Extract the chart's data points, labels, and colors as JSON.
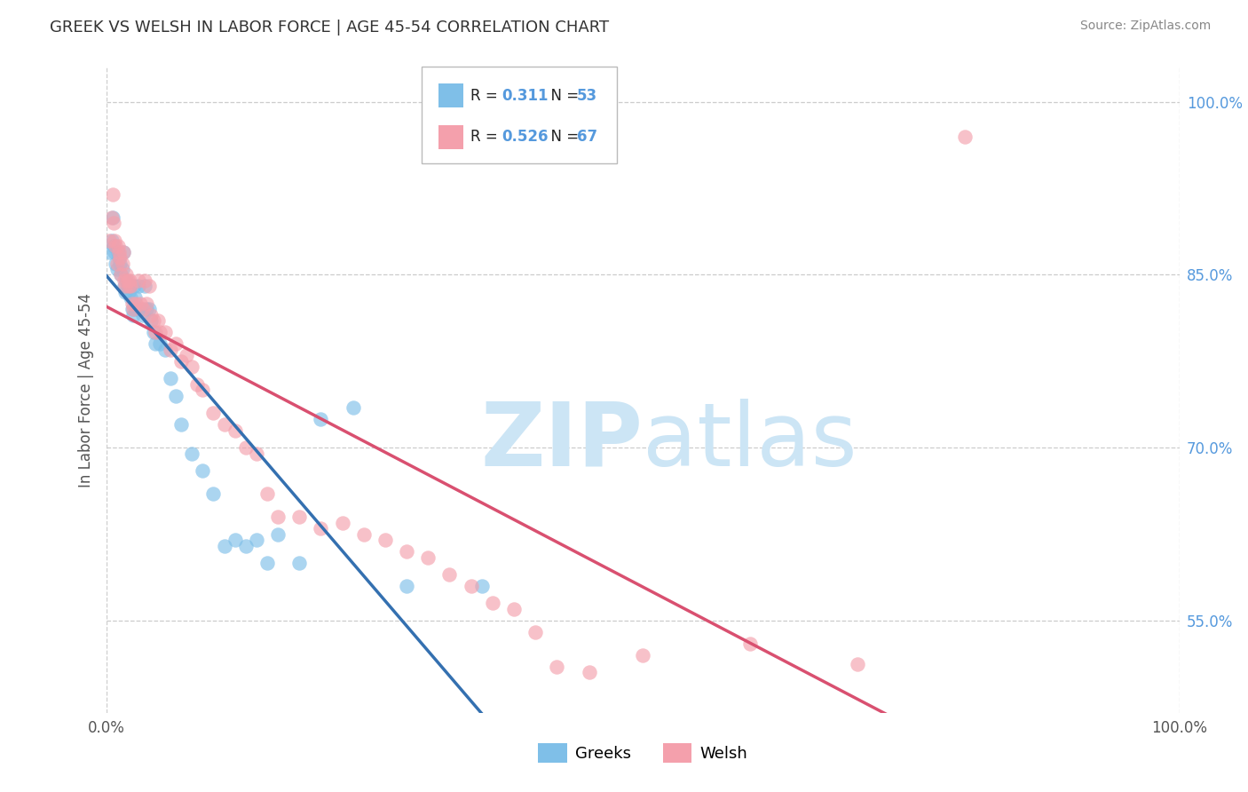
{
  "title": "GREEK VS WELSH IN LABOR FORCE | AGE 45-54 CORRELATION CHART",
  "source": "Source: ZipAtlas.com",
  "ylabel": "In Labor Force | Age 45-54",
  "xlim": [
    0.0,
    1.0
  ],
  "ylim": [
    0.47,
    1.03
  ],
  "yticks": [
    0.55,
    0.7,
    0.85,
    1.0
  ],
  "yticklabels": [
    "55.0%",
    "70.0%",
    "85.0%",
    "100.0%"
  ],
  "xticklabels": [
    "0.0%",
    "100.0%"
  ],
  "greek_R": 0.311,
  "greek_N": 53,
  "welsh_R": 0.526,
  "welsh_N": 67,
  "greek_color": "#7fbfe8",
  "welsh_color": "#f4a0ac",
  "greek_line_color": "#3470b0",
  "welsh_line_color": "#d95070",
  "tick_color": "#5599dd",
  "grid_color": "#cccccc",
  "watermark_color": "#cce5f5",
  "greek_x": [
    0.003,
    0.005,
    0.006,
    0.007,
    0.008,
    0.009,
    0.01,
    0.011,
    0.012,
    0.013,
    0.014,
    0.015,
    0.016,
    0.017,
    0.018,
    0.019,
    0.02,
    0.021,
    0.022,
    0.023,
    0.024,
    0.025,
    0.026,
    0.027,
    0.028,
    0.03,
    0.032,
    0.034,
    0.036,
    0.038,
    0.04,
    0.042,
    0.044,
    0.046,
    0.05,
    0.055,
    0.06,
    0.065,
    0.07,
    0.08,
    0.09,
    0.1,
    0.11,
    0.12,
    0.13,
    0.14,
    0.15,
    0.16,
    0.18,
    0.2,
    0.23,
    0.28,
    0.35
  ],
  "greek_y": [
    0.87,
    0.88,
    0.9,
    0.875,
    0.87,
    0.86,
    0.855,
    0.87,
    0.865,
    0.86,
    0.85,
    0.855,
    0.87,
    0.84,
    0.835,
    0.845,
    0.84,
    0.835,
    0.84,
    0.83,
    0.82,
    0.815,
    0.84,
    0.83,
    0.82,
    0.84,
    0.82,
    0.815,
    0.84,
    0.82,
    0.82,
    0.81,
    0.8,
    0.79,
    0.79,
    0.785,
    0.76,
    0.745,
    0.72,
    0.695,
    0.68,
    0.66,
    0.615,
    0.62,
    0.615,
    0.62,
    0.6,
    0.625,
    0.6,
    0.725,
    0.735,
    0.58,
    0.58
  ],
  "welsh_x": [
    0.003,
    0.005,
    0.006,
    0.007,
    0.008,
    0.009,
    0.01,
    0.011,
    0.012,
    0.013,
    0.014,
    0.015,
    0.016,
    0.017,
    0.018,
    0.019,
    0.02,
    0.021,
    0.022,
    0.023,
    0.024,
    0.025,
    0.028,
    0.03,
    0.032,
    0.034,
    0.036,
    0.038,
    0.04,
    0.042,
    0.044,
    0.046,
    0.048,
    0.05,
    0.055,
    0.06,
    0.065,
    0.07,
    0.075,
    0.08,
    0.085,
    0.09,
    0.1,
    0.11,
    0.12,
    0.13,
    0.14,
    0.15,
    0.16,
    0.18,
    0.2,
    0.22,
    0.24,
    0.26,
    0.28,
    0.3,
    0.32,
    0.34,
    0.36,
    0.38,
    0.4,
    0.42,
    0.45,
    0.5,
    0.6,
    0.7,
    0.8
  ],
  "welsh_y": [
    0.88,
    0.9,
    0.92,
    0.895,
    0.88,
    0.875,
    0.86,
    0.875,
    0.87,
    0.865,
    0.85,
    0.86,
    0.87,
    0.845,
    0.84,
    0.85,
    0.845,
    0.84,
    0.845,
    0.84,
    0.825,
    0.82,
    0.825,
    0.845,
    0.825,
    0.82,
    0.845,
    0.825,
    0.84,
    0.815,
    0.81,
    0.8,
    0.81,
    0.8,
    0.8,
    0.785,
    0.79,
    0.775,
    0.78,
    0.77,
    0.755,
    0.75,
    0.73,
    0.72,
    0.715,
    0.7,
    0.695,
    0.66,
    0.64,
    0.64,
    0.63,
    0.635,
    0.625,
    0.62,
    0.61,
    0.605,
    0.59,
    0.58,
    0.565,
    0.56,
    0.54,
    0.51,
    0.505,
    0.52,
    0.53,
    0.512,
    0.97
  ]
}
